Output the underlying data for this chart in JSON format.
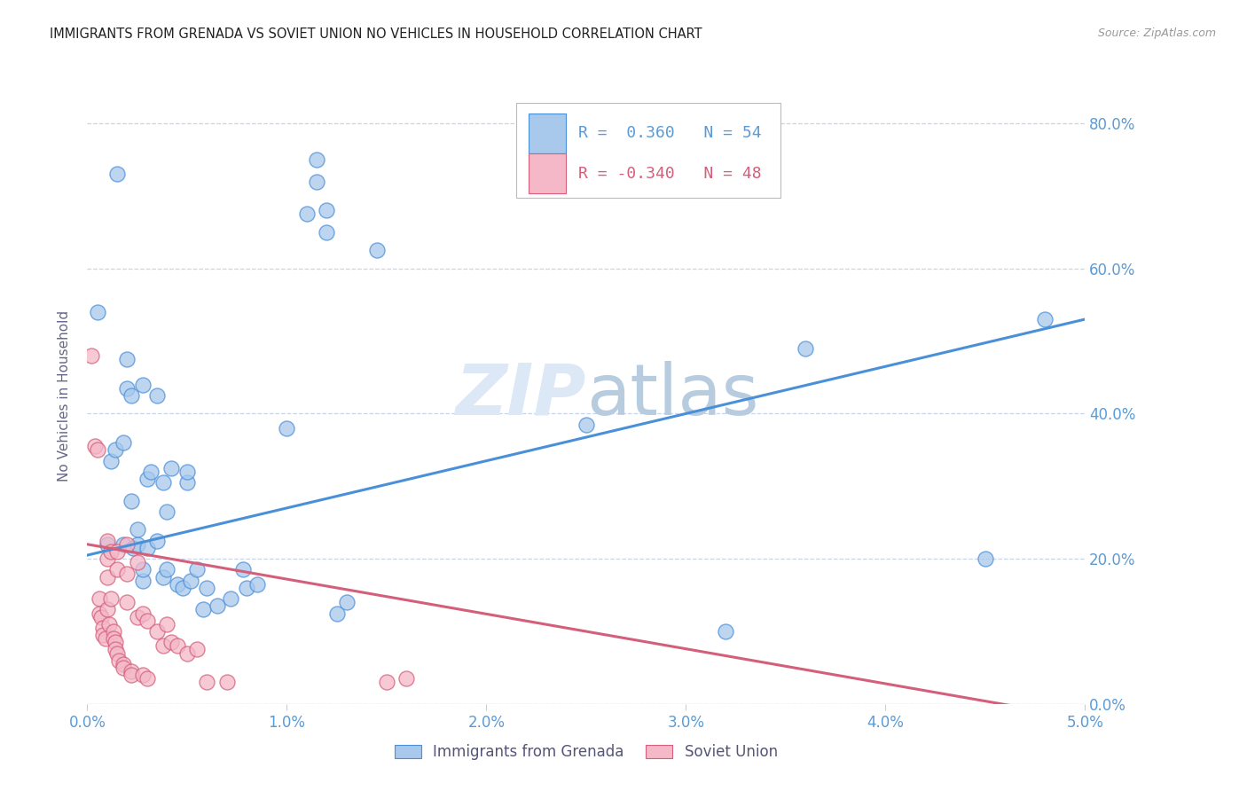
{
  "title": "IMMIGRANTS FROM GRENADA VS SOVIET UNION NO VEHICLES IN HOUSEHOLD CORRELATION CHART",
  "source": "Source: ZipAtlas.com",
  "ylabel": "No Vehicles in Household",
  "y_ticks": [
    0.0,
    20.0,
    40.0,
    60.0,
    80.0
  ],
  "x_ticks": [
    0.0,
    1.0,
    2.0,
    3.0,
    4.0,
    5.0
  ],
  "x_min": 0.0,
  "x_max": 5.0,
  "y_min": -2.0,
  "y_max": 87.0,
  "plot_y_min": 0.0,
  "plot_y_max": 85.0,
  "grenada_R": 0.36,
  "grenada_N": 54,
  "soviet_R": -0.34,
  "soviet_N": 48,
  "grenada_color": "#a8c8ec",
  "soviet_color": "#f4b8c8",
  "grenada_line_color": "#4a90d9",
  "soviet_line_color": "#d45f7a",
  "background_color": "#ffffff",
  "watermark_color": "#dce8f5",
  "grenada_line_intercept": 20.5,
  "grenada_line_slope": 6.5,
  "soviet_line_intercept": 22.0,
  "soviet_line_slope": -4.8,
  "grenada_points": [
    [
      0.05,
      54.0
    ],
    [
      0.1,
      22.0
    ],
    [
      0.12,
      33.5
    ],
    [
      0.14,
      35.0
    ],
    [
      0.15,
      73.0
    ],
    [
      0.18,
      22.0
    ],
    [
      0.18,
      36.0
    ],
    [
      0.2,
      43.5
    ],
    [
      0.2,
      47.5
    ],
    [
      0.22,
      28.0
    ],
    [
      0.22,
      42.5
    ],
    [
      0.23,
      21.5
    ],
    [
      0.25,
      22.0
    ],
    [
      0.25,
      24.0
    ],
    [
      0.28,
      17.0
    ],
    [
      0.28,
      18.5
    ],
    [
      0.28,
      44.0
    ],
    [
      0.3,
      31.0
    ],
    [
      0.3,
      21.5
    ],
    [
      0.32,
      32.0
    ],
    [
      0.35,
      22.5
    ],
    [
      0.35,
      42.5
    ],
    [
      0.38,
      17.5
    ],
    [
      0.38,
      30.5
    ],
    [
      0.4,
      26.5
    ],
    [
      0.4,
      18.5
    ],
    [
      0.42,
      32.5
    ],
    [
      0.45,
      16.5
    ],
    [
      0.48,
      16.0
    ],
    [
      0.5,
      30.5
    ],
    [
      0.5,
      32.0
    ],
    [
      0.52,
      17.0
    ],
    [
      0.55,
      18.5
    ],
    [
      0.58,
      13.0
    ],
    [
      0.6,
      16.0
    ],
    [
      0.65,
      13.5
    ],
    [
      0.72,
      14.5
    ],
    [
      0.78,
      18.5
    ],
    [
      0.8,
      16.0
    ],
    [
      0.85,
      16.5
    ],
    [
      1.0,
      38.0
    ],
    [
      1.1,
      67.5
    ],
    [
      1.15,
      72.0
    ],
    [
      1.15,
      75.0
    ],
    [
      1.2,
      65.0
    ],
    [
      1.2,
      68.0
    ],
    [
      1.25,
      12.5
    ],
    [
      1.3,
      14.0
    ],
    [
      1.45,
      62.5
    ],
    [
      2.5,
      38.5
    ],
    [
      3.2,
      10.0
    ],
    [
      3.6,
      49.0
    ],
    [
      4.5,
      20.0
    ],
    [
      4.8,
      53.0
    ]
  ],
  "soviet_points": [
    [
      0.02,
      48.0
    ],
    [
      0.04,
      35.5
    ],
    [
      0.05,
      35.0
    ],
    [
      0.06,
      14.5
    ],
    [
      0.06,
      12.5
    ],
    [
      0.07,
      12.0
    ],
    [
      0.08,
      10.5
    ],
    [
      0.08,
      9.5
    ],
    [
      0.09,
      9.0
    ],
    [
      0.1,
      22.5
    ],
    [
      0.1,
      20.0
    ],
    [
      0.1,
      17.5
    ],
    [
      0.1,
      13.0
    ],
    [
      0.11,
      11.0
    ],
    [
      0.12,
      21.0
    ],
    [
      0.12,
      14.5
    ],
    [
      0.13,
      10.0
    ],
    [
      0.13,
      9.0
    ],
    [
      0.14,
      8.5
    ],
    [
      0.14,
      7.5
    ],
    [
      0.15,
      21.0
    ],
    [
      0.15,
      18.5
    ],
    [
      0.15,
      7.0
    ],
    [
      0.16,
      6.0
    ],
    [
      0.18,
      5.5
    ],
    [
      0.18,
      5.0
    ],
    [
      0.2,
      22.0
    ],
    [
      0.2,
      18.0
    ],
    [
      0.2,
      14.0
    ],
    [
      0.22,
      4.5
    ],
    [
      0.22,
      4.0
    ],
    [
      0.25,
      19.5
    ],
    [
      0.25,
      12.0
    ],
    [
      0.28,
      12.5
    ],
    [
      0.28,
      4.0
    ],
    [
      0.3,
      11.5
    ],
    [
      0.3,
      3.5
    ],
    [
      0.35,
      10.0
    ],
    [
      0.38,
      8.0
    ],
    [
      0.4,
      11.0
    ],
    [
      0.42,
      8.5
    ],
    [
      0.45,
      8.0
    ],
    [
      0.5,
      7.0
    ],
    [
      0.55,
      7.5
    ],
    [
      0.6,
      3.0
    ],
    [
      0.7,
      3.0
    ],
    [
      1.5,
      3.0
    ],
    [
      1.6,
      3.5
    ]
  ]
}
